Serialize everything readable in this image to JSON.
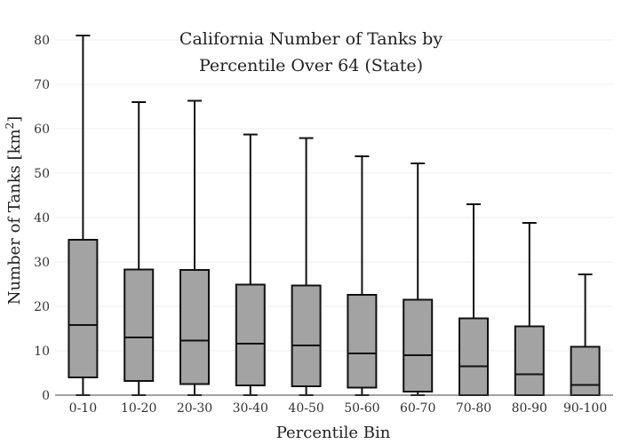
{
  "chart_data": {
    "type": "box",
    "title_lines": [
      "California Number of Tanks by",
      "Percentile Over 64 (State)"
    ],
    "xlabel": "Percentile Bin",
    "ylabel_main": "Number of Tanks  [km",
    "ylabel_sup": "2",
    "ylabel_end": "]",
    "ylim": [
      0,
      82
    ],
    "yticks": [
      0,
      10,
      20,
      30,
      40,
      50,
      60,
      70,
      80
    ],
    "grid": true,
    "categories": [
      "0-10",
      "10-20",
      "20-30",
      "30-40",
      "40-50",
      "50-60",
      "60-70",
      "70-80",
      "80-90",
      "90-100"
    ],
    "boxes": [
      {
        "min": 0,
        "q1": 4,
        "median": 15.8,
        "q3": 35,
        "max": 81
      },
      {
        "min": 0,
        "q1": 3.2,
        "median": 13,
        "q3": 28.3,
        "max": 66
      },
      {
        "min": 0,
        "q1": 2.5,
        "median": 12.3,
        "q3": 28.2,
        "max": 66.3
      },
      {
        "min": 0,
        "q1": 2.2,
        "median": 11.6,
        "q3": 24.9,
        "max": 58.7
      },
      {
        "min": 0,
        "q1": 2,
        "median": 11.2,
        "q3": 24.7,
        "max": 57.9
      },
      {
        "min": 0,
        "q1": 1.7,
        "median": 9.4,
        "q3": 22.6,
        "max": 53.8
      },
      {
        "min": 0,
        "q1": 0.8,
        "median": 9,
        "q3": 21.5,
        "max": 52.2
      },
      {
        "min": 0,
        "q1": 0,
        "median": 6.5,
        "q3": 17.3,
        "max": 43
      },
      {
        "min": 0,
        "q1": 0,
        "median": 4.7,
        "q3": 15.5,
        "max": 38.8
      },
      {
        "min": 0,
        "q1": 0,
        "median": 2.3,
        "q3": 10.9,
        "max": 27.2
      }
    ]
  }
}
